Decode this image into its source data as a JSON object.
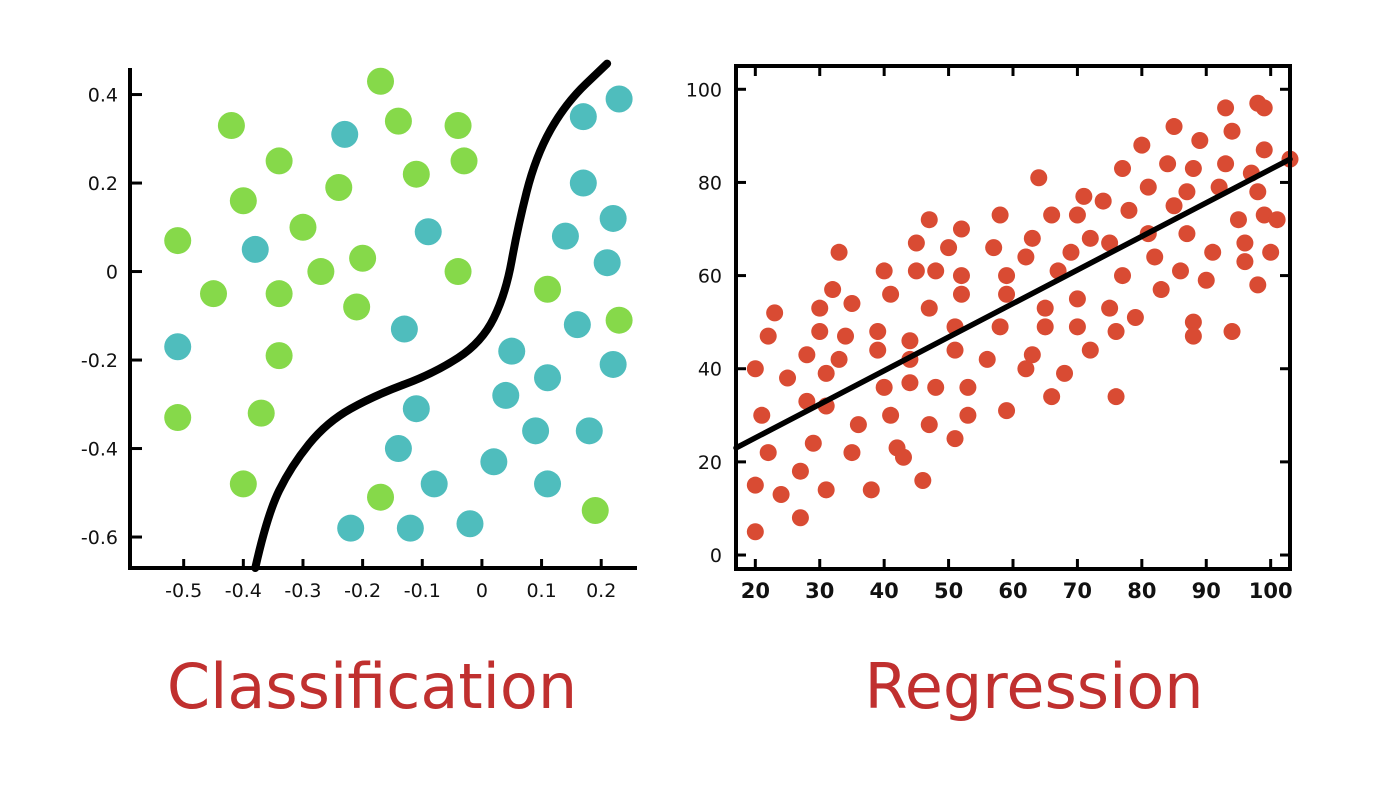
{
  "captions": {
    "left": "Classification",
    "right": "Regression"
  },
  "chart_data": [
    {
      "type": "scatter",
      "title": "",
      "xlim": [
        -0.59,
        0.26
      ],
      "ylim": [
        -0.67,
        0.46
      ],
      "xticks": [
        "-0.5",
        "-0.4",
        "-0.3",
        "-0.2",
        "-0.1",
        "0",
        "0.1",
        "0.2"
      ],
      "yticks": [
        "0.4",
        "0.2",
        "0",
        "-0.2",
        "-0.4",
        "-0.6"
      ],
      "colors": {
        "green": "#86d94a",
        "teal": "#4fbdbd",
        "boundary": "#000000"
      },
      "series": [
        {
          "color": "#86d94a",
          "points": [
            [
              -0.17,
              0.43
            ],
            [
              -0.42,
              0.33
            ],
            [
              -0.14,
              0.34
            ],
            [
              -0.04,
              0.33
            ],
            [
              -0.34,
              0.25
            ],
            [
              -0.03,
              0.25
            ],
            [
              -0.24,
              0.19
            ],
            [
              -0.11,
              0.22
            ],
            [
              -0.4,
              0.16
            ],
            [
              -0.51,
              0.07
            ],
            [
              -0.3,
              0.1
            ],
            [
              -0.2,
              0.03
            ],
            [
              -0.45,
              -0.05
            ],
            [
              -0.34,
              -0.05
            ],
            [
              -0.27,
              0.0
            ],
            [
              -0.04,
              0.0
            ],
            [
              -0.21,
              -0.08
            ],
            [
              0.11,
              -0.04
            ],
            [
              0.23,
              -0.11
            ],
            [
              -0.34,
              -0.19
            ],
            [
              -0.51,
              -0.33
            ],
            [
              -0.37,
              -0.32
            ],
            [
              -0.4,
              -0.48
            ],
            [
              -0.17,
              -0.51
            ],
            [
              0.19,
              -0.54
            ]
          ]
        },
        {
          "color": "#4fbdbd",
          "points": [
            [
              0.23,
              0.39
            ],
            [
              0.17,
              0.35
            ],
            [
              -0.23,
              0.31
            ],
            [
              0.17,
              0.2
            ],
            [
              0.22,
              0.12
            ],
            [
              0.14,
              0.08
            ],
            [
              -0.09,
              0.09
            ],
            [
              -0.38,
              0.05
            ],
            [
              0.21,
              0.02
            ],
            [
              -0.13,
              -0.13
            ],
            [
              0.16,
              -0.12
            ],
            [
              -0.51,
              -0.17
            ],
            [
              0.05,
              -0.18
            ],
            [
              0.11,
              -0.24
            ],
            [
              0.22,
              -0.21
            ],
            [
              0.04,
              -0.28
            ],
            [
              -0.11,
              -0.31
            ],
            [
              0.09,
              -0.36
            ],
            [
              0.18,
              -0.36
            ],
            [
              -0.14,
              -0.4
            ],
            [
              0.02,
              -0.43
            ],
            [
              -0.08,
              -0.48
            ],
            [
              0.11,
              -0.48
            ],
            [
              -0.22,
              -0.58
            ],
            [
              -0.12,
              -0.58
            ],
            [
              -0.02,
              -0.57
            ]
          ]
        }
      ],
      "boundary": [
        [
          -0.38,
          -0.67
        ],
        [
          -0.36,
          -0.55
        ],
        [
          -0.32,
          -0.44
        ],
        [
          -0.26,
          -0.34
        ],
        [
          -0.18,
          -0.28
        ],
        [
          -0.08,
          -0.23
        ],
        [
          0.0,
          -0.16
        ],
        [
          0.04,
          -0.05
        ],
        [
          0.06,
          0.1
        ],
        [
          0.09,
          0.26
        ],
        [
          0.14,
          0.38
        ],
        [
          0.21,
          0.47
        ]
      ]
    },
    {
      "type": "scatter",
      "title": "",
      "xlim": [
        17,
        103
      ],
      "ylim": [
        -3,
        105
      ],
      "xticks": [
        20,
        30,
        40,
        50,
        60,
        70,
        80,
        90,
        100
      ],
      "yticks": [
        0,
        20,
        40,
        60,
        80,
        100
      ],
      "colors": {
        "points": "#d94b33",
        "line": "#000000"
      },
      "points": [
        [
          20,
          5
        ],
        [
          20,
          15
        ],
        [
          20,
          40
        ],
        [
          21,
          30
        ],
        [
          22,
          22
        ],
        [
          22,
          47
        ],
        [
          23,
          52
        ],
        [
          24,
          13
        ],
        [
          25,
          38
        ],
        [
          27,
          8
        ],
        [
          27,
          18
        ],
        [
          28,
          33
        ],
        [
          28,
          43
        ],
        [
          29,
          24
        ],
        [
          30,
          53
        ],
        [
          30,
          48
        ],
        [
          31,
          14
        ],
        [
          31,
          32
        ],
        [
          31,
          39
        ],
        [
          32,
          57
        ],
        [
          33,
          65
        ],
        [
          33,
          42
        ],
        [
          34,
          47
        ],
        [
          35,
          54
        ],
        [
          35,
          22
        ],
        [
          36,
          28
        ],
        [
          38,
          14
        ],
        [
          39,
          44
        ],
        [
          39,
          48
        ],
        [
          40,
          36
        ],
        [
          40,
          61
        ],
        [
          41,
          30
        ],
        [
          41,
          56
        ],
        [
          42,
          23
        ],
        [
          43,
          21
        ],
        [
          44,
          37
        ],
        [
          44,
          42
        ],
        [
          44,
          46
        ],
        [
          45,
          61
        ],
        [
          45,
          67
        ],
        [
          46,
          16
        ],
        [
          47,
          28
        ],
        [
          47,
          53
        ],
        [
          47,
          72
        ],
        [
          48,
          61
        ],
        [
          48,
          36
        ],
        [
          50,
          66
        ],
        [
          51,
          44
        ],
        [
          51,
          49
        ],
        [
          51,
          25
        ],
        [
          52,
          70
        ],
        [
          52,
          56
        ],
        [
          52,
          60
        ],
        [
          53,
          36
        ],
        [
          53,
          30
        ],
        [
          56,
          42
        ],
        [
          57,
          66
        ],
        [
          58,
          49
        ],
        [
          58,
          73
        ],
        [
          59,
          31
        ],
        [
          59,
          56
        ],
        [
          59,
          60
        ],
        [
          62,
          64
        ],
        [
          62,
          40
        ],
        [
          63,
          43
        ],
        [
          63,
          68
        ],
        [
          64,
          81
        ],
        [
          65,
          49
        ],
        [
          65,
          53
        ],
        [
          66,
          34
        ],
        [
          66,
          73
        ],
        [
          67,
          61
        ],
        [
          68,
          39
        ],
        [
          69,
          65
        ],
        [
          70,
          49
        ],
        [
          70,
          55
        ],
        [
          70,
          73
        ],
        [
          71,
          77
        ],
        [
          72,
          44
        ],
        [
          72,
          68
        ],
        [
          74,
          76
        ],
        [
          75,
          67
        ],
        [
          75,
          53
        ],
        [
          76,
          48
        ],
        [
          76,
          34
        ],
        [
          77,
          83
        ],
        [
          77,
          60
        ],
        [
          78,
          74
        ],
        [
          79,
          51
        ],
        [
          80,
          88
        ],
        [
          81,
          69
        ],
        [
          81,
          79
        ],
        [
          82,
          64
        ],
        [
          83,
          57
        ],
        [
          84,
          84
        ],
        [
          85,
          75
        ],
        [
          85,
          92
        ],
        [
          86,
          61
        ],
        [
          87,
          78
        ],
        [
          87,
          69
        ],
        [
          88,
          50
        ],
        [
          88,
          83
        ],
        [
          88,
          47
        ],
        [
          89,
          89
        ],
        [
          90,
          59
        ],
        [
          91,
          65
        ],
        [
          92,
          79
        ],
        [
          93,
          84
        ],
        [
          93,
          96
        ],
        [
          94,
          91
        ],
        [
          94,
          48
        ],
        [
          95,
          72
        ],
        [
          96,
          67
        ],
        [
          96,
          63
        ],
        [
          97,
          82
        ],
        [
          98,
          97
        ],
        [
          98,
          78
        ],
        [
          98,
          58
        ],
        [
          99,
          73
        ],
        [
          99,
          96
        ],
        [
          99,
          87
        ],
        [
          100,
          65
        ],
        [
          101,
          72
        ],
        [
          103,
          85
        ]
      ],
      "fit_line": [
        [
          17,
          23
        ],
        [
          103,
          85
        ]
      ]
    }
  ]
}
